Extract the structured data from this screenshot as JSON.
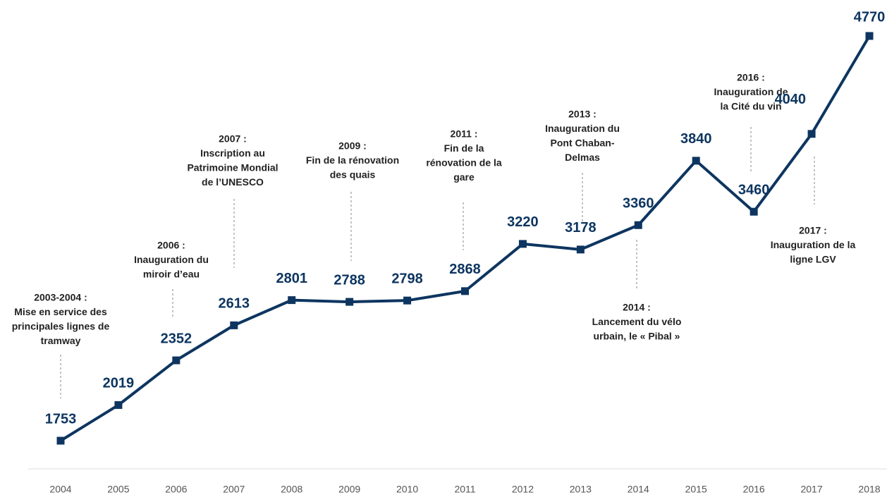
{
  "chart_data": {
    "type": "line",
    "categories": [
      "2004",
      "2005",
      "2006",
      "2007",
      "2008",
      "2009",
      "2010",
      "2011",
      "2012",
      "2013",
      "2014",
      "2015",
      "2016",
      "2017",
      "2018"
    ],
    "series": [
      {
        "color": "#0d3560",
        "values": [
          1753,
          2019,
          2352,
          2613,
          2801,
          2788,
          2798,
          2868,
          3220,
          3178,
          3360,
          3840,
          3460,
          4040,
          4770
        ]
      }
    ],
    "annotations": [
      {
        "lines": [
          "2003-2004 :",
          "Mise en service des",
          "principales lignes de",
          "tramway"
        ]
      },
      {
        "lines": [
          "2006 :",
          "Inauguration du",
          "miroir d’eau"
        ]
      },
      {
        "lines": [
          "2007 :",
          "Inscription au",
          "Patrimoine Mondial",
          "de l’UNESCO"
        ]
      },
      {
        "lines": [
          "2009 :",
          "Fin de la rénovation",
          "des quais"
        ]
      },
      {
        "lines": [
          "2011 :",
          "Fin de la",
          "rénovation de la",
          "gare"
        ]
      },
      {
        "lines": [
          "2013 :",
          "Inauguration du",
          "Pont Chaban-",
          "Delmas"
        ]
      },
      {
        "lines": [
          "2014 :",
          "Lancement du vélo",
          "urbain, le « Pibal »"
        ]
      },
      {
        "lines": [
          "2016 :",
          "Inauguration de",
          "la Cité du vin"
        ]
      },
      {
        "lines": [
          "2017 :",
          "Inauguration de la",
          "ligne LGV"
        ]
      }
    ]
  }
}
